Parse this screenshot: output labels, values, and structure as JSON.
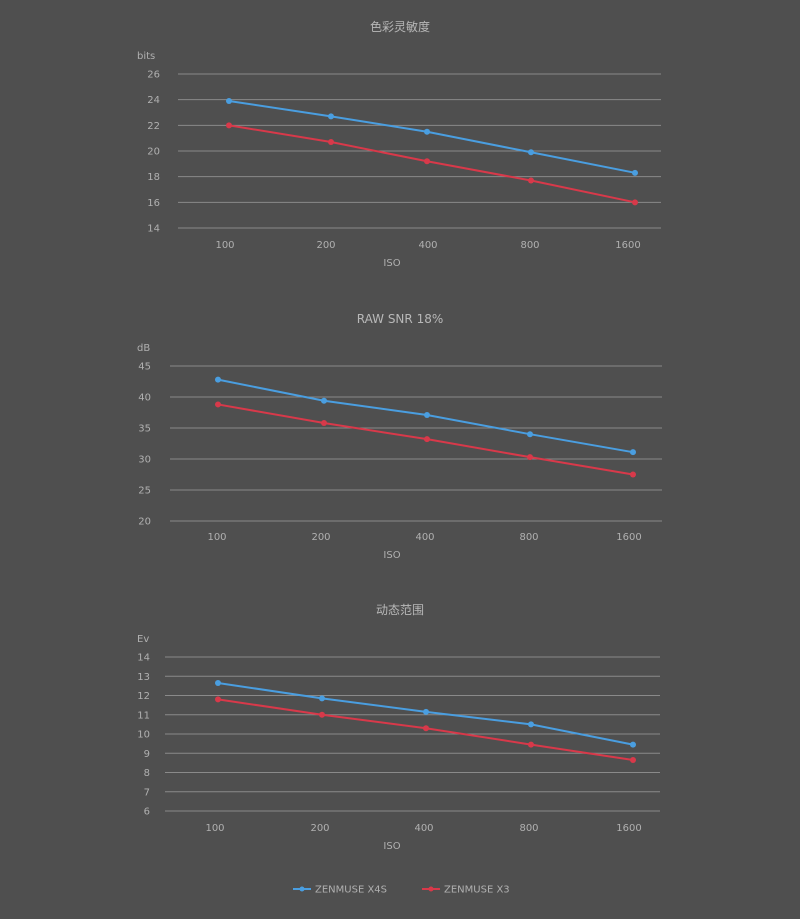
{
  "colors": {
    "x4s": "#4a9ee0",
    "x3": "#d8394a",
    "grid": "#8a8a8a",
    "text": "#b0b0b0",
    "background": "#4f4f4f"
  },
  "chart_data": [
    {
      "type": "line",
      "title": "色彩灵敏度",
      "ylabel": "bits",
      "xlabel": "ISO",
      "categories": [
        "100",
        "200",
        "400",
        "800",
        "1600"
      ],
      "yticks": [
        "14",
        "16",
        "18",
        "20",
        "22",
        "24",
        "26"
      ],
      "ylim": [
        14,
        26
      ],
      "grid": true,
      "series": [
        {
          "name": "ZENMUSE X4S",
          "color": "#4a9ee0",
          "values": [
            23.9,
            22.7,
            21.5,
            19.9,
            18.3
          ]
        },
        {
          "name": "ZENMUSE X3",
          "color": "#d8394a",
          "values": [
            22.0,
            20.7,
            19.2,
            17.7,
            16.0
          ]
        }
      ]
    },
    {
      "type": "line",
      "title": "RAW SNR 18%",
      "ylabel": "dB",
      "xlabel": "ISO",
      "categories": [
        "100",
        "200",
        "400",
        "800",
        "1600"
      ],
      "yticks": [
        "20",
        "25",
        "30",
        "35",
        "40",
        "45"
      ],
      "ylim": [
        20,
        45
      ],
      "grid": true,
      "series": [
        {
          "name": "ZENMUSE X4S",
          "color": "#4a9ee0",
          "values": [
            42.8,
            39.4,
            37.1,
            34.0,
            31.1
          ]
        },
        {
          "name": "ZENMUSE X3",
          "color": "#d8394a",
          "values": [
            38.8,
            35.8,
            33.2,
            30.3,
            27.5
          ]
        }
      ]
    },
    {
      "type": "line",
      "title": "动态范围",
      "ylabel": "Ev",
      "xlabel": "ISO",
      "categories": [
        "100",
        "200",
        "400",
        "800",
        "1600"
      ],
      "yticks": [
        "6",
        "7",
        "8",
        "9",
        "10",
        "11",
        "12",
        "13",
        "14"
      ],
      "ylim": [
        6,
        14
      ],
      "grid": true,
      "series": [
        {
          "name": "ZENMUSE X4S",
          "color": "#4a9ee0",
          "values": [
            12.65,
            11.85,
            11.15,
            10.5,
            9.45
          ]
        },
        {
          "name": "ZENMUSE X3",
          "color": "#d8394a",
          "values": [
            11.8,
            11.0,
            10.3,
            9.45,
            8.65
          ]
        }
      ]
    }
  ],
  "legend": {
    "placement": "bottom-center",
    "items": [
      {
        "label": "ZENMUSE X4S",
        "color": "#4a9ee0"
      },
      {
        "label": "ZENMUSE X3",
        "color": "#d8394a"
      }
    ]
  }
}
